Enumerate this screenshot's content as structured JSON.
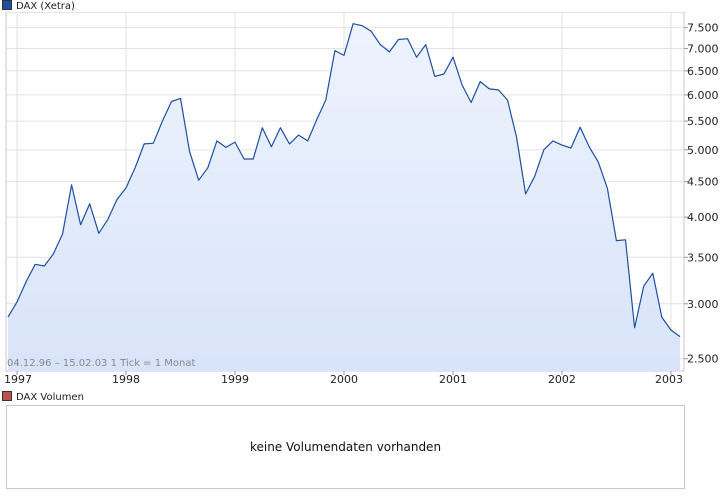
{
  "chart_data": {
    "type": "area",
    "series_name": "DAX (Xetra)",
    "series_color": "#1f4f9f",
    "fill_color": "#d8e4fa",
    "range_text": "04.12.96 – 15.02.03",
    "tick_text": "1 Tick = 1 Monat",
    "y_scale": "log",
    "ylim": [
      2400,
      7900
    ],
    "y_ticks": [
      2500,
      3000,
      3500,
      4000,
      4500,
      5000,
      5500,
      6000,
      6500,
      7000,
      7500
    ],
    "y_tick_labels": [
      "2.500",
      "3.000",
      "3.500",
      "4.000",
      "4.500",
      "5.000",
      "5.500",
      "6.000",
      "6.500",
      "7.000",
      "7.500"
    ],
    "x_tick_labels": [
      "1997",
      "1998",
      "1999",
      "2000",
      "2001",
      "2002",
      "2003"
    ],
    "x_ticks": [
      "1997-01",
      "1998-01",
      "1999-01",
      "2000-01",
      "2001-01",
      "2002-01",
      "2003-01"
    ],
    "grid": true,
    "legend": "top-left",
    "x": [
      "1996-12",
      "1997-01",
      "1997-02",
      "1997-03",
      "1997-04",
      "1997-05",
      "1997-06",
      "1997-07",
      "1997-08",
      "1997-09",
      "1997-10",
      "1997-11",
      "1997-12",
      "1998-01",
      "1998-02",
      "1998-03",
      "1998-04",
      "1998-05",
      "1998-06",
      "1998-07",
      "1998-08",
      "1998-09",
      "1998-10",
      "1998-11",
      "1998-12",
      "1999-01",
      "1999-02",
      "1999-03",
      "1999-04",
      "1999-05",
      "1999-06",
      "1999-07",
      "1999-08",
      "1999-09",
      "1999-10",
      "1999-11",
      "1999-12",
      "2000-01",
      "2000-02",
      "2000-03",
      "2000-04",
      "2000-05",
      "2000-06",
      "2000-07",
      "2000-08",
      "2000-09",
      "2000-10",
      "2000-11",
      "2000-12",
      "2001-01",
      "2001-02",
      "2001-03",
      "2001-04",
      "2001-05",
      "2001-06",
      "2001-07",
      "2001-08",
      "2001-09",
      "2001-10",
      "2001-11",
      "2001-12",
      "2002-01",
      "2002-02",
      "2002-03",
      "2002-04",
      "2002-05",
      "2002-06",
      "2002-07",
      "2002-08",
      "2002-09",
      "2002-10",
      "2002-11",
      "2002-12",
      "2003-01",
      "2003-02"
    ],
    "values": [
      2870,
      3020,
      3230,
      3420,
      3400,
      3540,
      3780,
      4450,
      3900,
      4180,
      3790,
      3970,
      4240,
      4410,
      4710,
      5100,
      5110,
      5500,
      5870,
      5930,
      4970,
      4520,
      4710,
      5150,
      5040,
      5130,
      4850,
      4850,
      5380,
      5050,
      5380,
      5100,
      5250,
      5150,
      5530,
      5900,
      6950,
      6840,
      7600,
      7550,
      7410,
      7090,
      6920,
      7210,
      7230,
      6800,
      7090,
      6380,
      6430,
      6800,
      6200,
      5850,
      6270,
      6120,
      6100,
      5900,
      5220,
      4320,
      4580,
      5000,
      5150,
      5080,
      5030,
      5390,
      5050,
      4800,
      4400,
      3700,
      3710,
      2770,
      3180,
      3320,
      2870,
      2750,
      2690
    ]
  },
  "volume_panel": {
    "legend": "DAX Volumen",
    "legend_color": "#c0504d",
    "message": "keine Volumendaten vorhanden"
  }
}
